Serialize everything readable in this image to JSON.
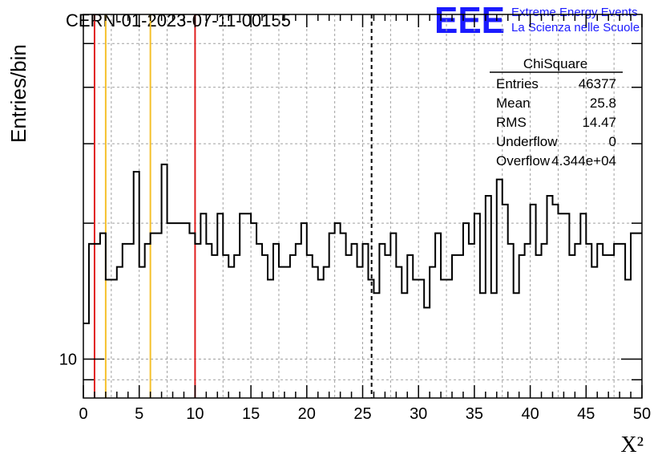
{
  "header": {
    "run_title": "CERN-01-2023-07-11-00155",
    "logo_text": "EEE",
    "logo_line1": "Extreme Energy Events",
    "logo_line2": "La Scienza nelle Scuole",
    "logo_color": "#1a1aff"
  },
  "stats_box": {
    "title": "ChiSquare",
    "rows": [
      {
        "label": "Entries",
        "value": "46377"
      },
      {
        "label": "Mean",
        "value": "25.8"
      },
      {
        "label": "RMS",
        "value": "14.47"
      },
      {
        "label": "Underflow",
        "value": "0"
      },
      {
        "label": "Overflow",
        "value": "4.344e+04"
      }
    ]
  },
  "chart_data": {
    "type": "histogram",
    "xlabel": "X²",
    "ylabel": "Entries/bin",
    "xlim": [
      0,
      50
    ],
    "ylim": [
      8.2,
      58
    ],
    "yscale": "log",
    "bin_width": 0.5,
    "x_ticks": [
      "0",
      "5",
      "10",
      "15",
      "20",
      "25",
      "30",
      "35",
      "40",
      "45",
      "50"
    ],
    "y_tick_labels": [
      {
        "value": 10,
        "label": "10"
      }
    ],
    "grid": true,
    "histogram_color": "#000000",
    "values": [
      12,
      18,
      18,
      19,
      15,
      15,
      16,
      18,
      18,
      26,
      16,
      18,
      19,
      19,
      27,
      20,
      20,
      20,
      20,
      19,
      18,
      21,
      18,
      17,
      21,
      17,
      16,
      17,
      21,
      21,
      20,
      18,
      17,
      15,
      18,
      16,
      16,
      17,
      18,
      20,
      17,
      16,
      15,
      16,
      19,
      20,
      19,
      17,
      18,
      16,
      18,
      15,
      14,
      18,
      17,
      19,
      16,
      14,
      17,
      15,
      15,
      13,
      16,
      19,
      15,
      15,
      17,
      17,
      20,
      18,
      21,
      14,
      23,
      14,
      25,
      22,
      18,
      14,
      17,
      18,
      22,
      17,
      18,
      23,
      22,
      21,
      21,
      17,
      18,
      21,
      18,
      16,
      18,
      17,
      17,
      18,
      18,
      15,
      19,
      19
    ],
    "reference_lines": [
      {
        "x": 1.0,
        "color": "#e02020",
        "style": "solid"
      },
      {
        "x": 2.0,
        "color": "#f5c02a",
        "style": "solid"
      },
      {
        "x": 6.0,
        "color": "#f5c02a",
        "style": "solid"
      },
      {
        "x": 10.0,
        "color": "#e02020",
        "style": "solid"
      },
      {
        "x": 25.8,
        "color": "#000000",
        "style": "dashed"
      }
    ]
  }
}
